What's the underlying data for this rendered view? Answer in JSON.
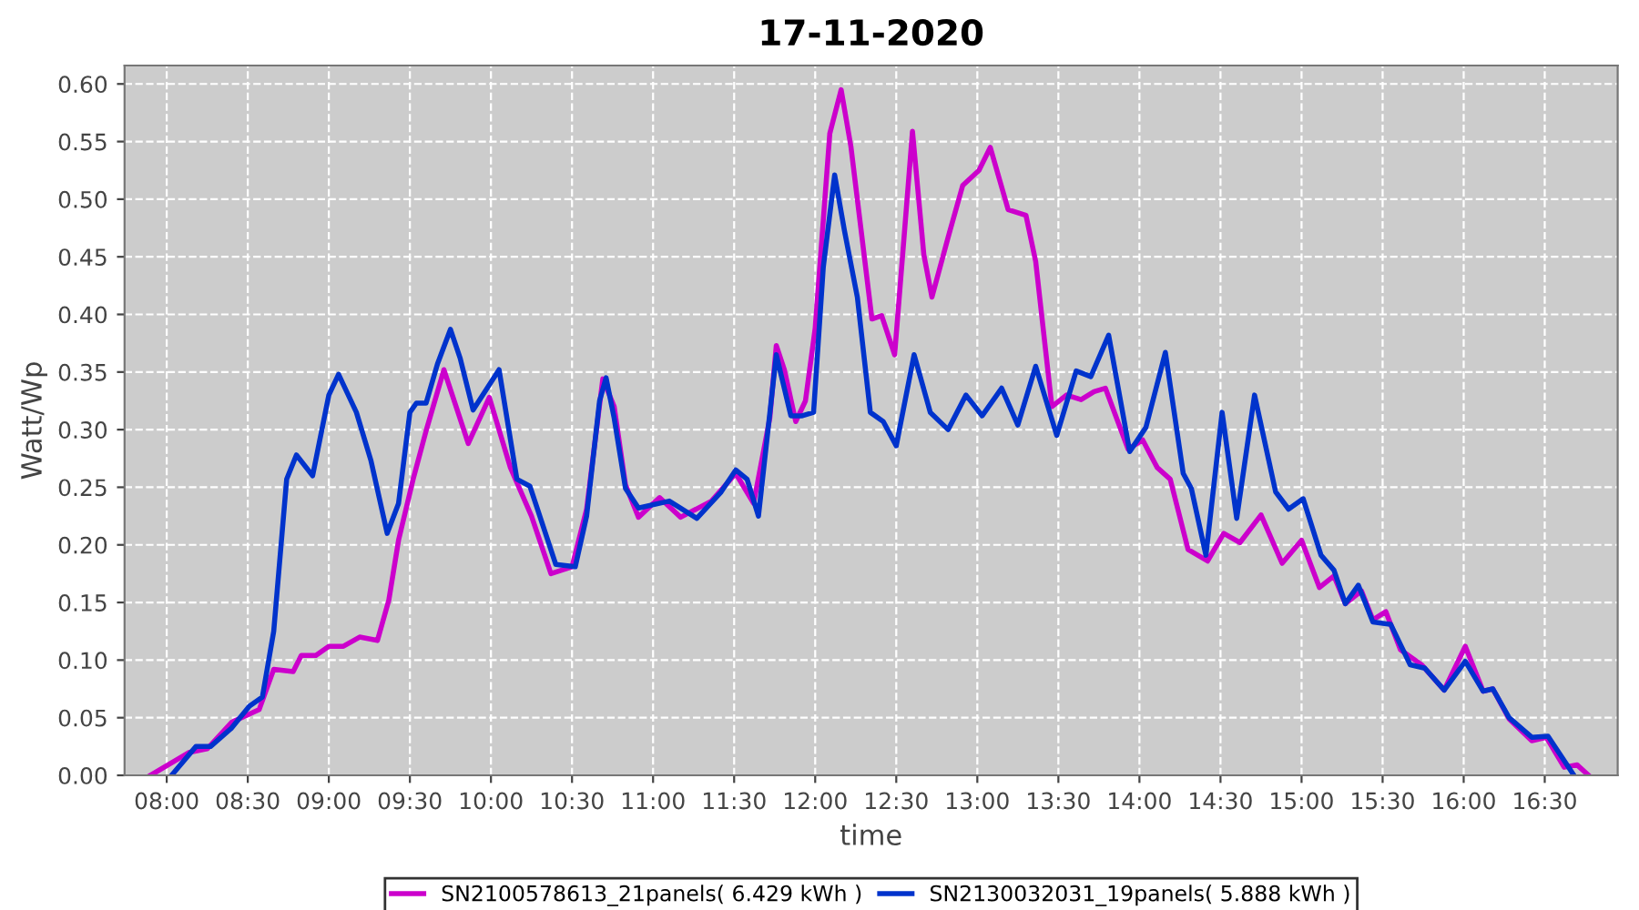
{
  "chart_data": {
    "type": "line",
    "title": "17-11-2020",
    "xlabel": "time",
    "ylabel": "Watt/Wp",
    "series": [
      {
        "name": "SN2100578613_21panels( 6.429 kWh )",
        "color": "#cc00cc",
        "x": [
          7.9,
          8.14,
          8.25,
          8.4,
          8.57,
          8.66,
          8.78,
          8.83,
          8.92,
          9.0,
          9.09,
          9.19,
          9.3,
          9.37,
          9.43,
          9.52,
          9.6,
          9.71,
          9.86,
          9.99,
          10.12,
          10.25,
          10.37,
          10.5,
          10.59,
          10.69,
          10.76,
          10.83,
          10.91,
          11.04,
          11.17,
          11.36,
          11.51,
          11.62,
          11.72,
          11.76,
          11.81,
          11.88,
          11.94,
          12.0,
          12.09,
          12.16,
          12.22,
          12.35,
          12.41,
          12.49,
          12.56,
          12.6,
          12.67,
          12.72,
          12.82,
          12.91,
          13.01,
          13.08,
          13.19,
          13.3,
          13.36,
          13.46,
          13.55,
          13.64,
          13.72,
          13.79,
          13.93,
          14.02,
          14.11,
          14.19,
          14.3,
          14.42,
          14.52,
          14.62,
          14.75,
          14.88,
          15.0,
          15.11,
          15.2,
          15.27,
          15.37,
          15.44,
          15.52,
          15.61,
          15.74,
          15.88,
          16.01,
          16.12,
          16.18,
          16.28,
          16.42,
          16.51,
          16.62,
          16.7,
          16.77
        ],
        "values": [
          0.0,
          0.02,
          0.023,
          0.046,
          0.057,
          0.092,
          0.09,
          0.104,
          0.104,
          0.112,
          0.112,
          0.12,
          0.117,
          0.152,
          0.204,
          0.257,
          0.299,
          0.352,
          0.288,
          0.328,
          0.267,
          0.225,
          0.175,
          0.181,
          0.231,
          0.344,
          0.32,
          0.252,
          0.224,
          0.241,
          0.224,
          0.238,
          0.262,
          0.236,
          0.31,
          0.373,
          0.352,
          0.307,
          0.325,
          0.388,
          0.557,
          0.595,
          0.546,
          0.396,
          0.399,
          0.365,
          0.488,
          0.559,
          0.452,
          0.415,
          0.467,
          0.512,
          0.525,
          0.545,
          0.491,
          0.486,
          0.446,
          0.32,
          0.33,
          0.326,
          0.333,
          0.336,
          0.283,
          0.291,
          0.267,
          0.257,
          0.196,
          0.186,
          0.21,
          0.202,
          0.226,
          0.184,
          0.204,
          0.163,
          0.173,
          0.149,
          0.16,
          0.135,
          0.142,
          0.109,
          0.096,
          0.074,
          0.112,
          0.073,
          0.075,
          0.049,
          0.03,
          0.033,
          0.007,
          0.009,
          0.0
        ]
      },
      {
        "name": "SN2130032031_19panels( 5.888 kWh )",
        "color": "#0033cc",
        "x": [
          8.03,
          8.18,
          8.27,
          8.4,
          8.51,
          8.59,
          8.66,
          8.74,
          8.8,
          8.9,
          9.0,
          9.06,
          9.17,
          9.26,
          9.36,
          9.43,
          9.5,
          9.54,
          9.6,
          9.67,
          9.75,
          9.81,
          9.89,
          10.05,
          10.16,
          10.24,
          10.4,
          10.52,
          10.59,
          10.67,
          10.71,
          10.76,
          10.83,
          10.91,
          11.1,
          11.27,
          11.42,
          11.51,
          11.58,
          11.65,
          11.76,
          11.85,
          11.92,
          11.99,
          12.05,
          12.12,
          12.18,
          12.26,
          12.34,
          12.42,
          12.5,
          12.61,
          12.71,
          12.82,
          12.93,
          13.03,
          13.15,
          13.25,
          13.36,
          13.49,
          13.61,
          13.7,
          13.81,
          13.94,
          14.04,
          14.16,
          14.27,
          14.32,
          14.41,
          14.51,
          14.6,
          14.71,
          14.84,
          14.92,
          15.01,
          15.12,
          15.2,
          15.27,
          15.35,
          15.44,
          15.55,
          15.67,
          15.76,
          15.88,
          16.01,
          16.12,
          16.18,
          16.28,
          16.42,
          16.52,
          16.68
        ],
        "values": [
          0.0,
          0.025,
          0.025,
          0.041,
          0.06,
          0.068,
          0.125,
          0.257,
          0.278,
          0.26,
          0.33,
          0.348,
          0.315,
          0.273,
          0.21,
          0.236,
          0.315,
          0.323,
          0.323,
          0.357,
          0.387,
          0.362,
          0.317,
          0.352,
          0.257,
          0.251,
          0.183,
          0.181,
          0.225,
          0.325,
          0.345,
          0.31,
          0.249,
          0.232,
          0.238,
          0.223,
          0.246,
          0.265,
          0.257,
          0.225,
          0.365,
          0.312,
          0.312,
          0.315,
          0.441,
          0.521,
          0.473,
          0.415,
          0.315,
          0.307,
          0.286,
          0.365,
          0.315,
          0.3,
          0.33,
          0.312,
          0.336,
          0.304,
          0.355,
          0.295,
          0.351,
          0.346,
          0.382,
          0.281,
          0.302,
          0.367,
          0.262,
          0.249,
          0.191,
          0.315,
          0.223,
          0.33,
          0.246,
          0.231,
          0.24,
          0.191,
          0.178,
          0.149,
          0.165,
          0.133,
          0.131,
          0.096,
          0.093,
          0.074,
          0.099,
          0.073,
          0.075,
          0.05,
          0.033,
          0.034,
          0.0
        ]
      }
    ],
    "xlim": [
      7.74,
      16.95
    ],
    "ylim": [
      0,
      0.616
    ],
    "xticks": [
      {
        "value": 8,
        "label": "08:00"
      },
      {
        "value": 8.5,
        "label": "08:30"
      },
      {
        "value": 9,
        "label": "09:00"
      },
      {
        "value": 9.5,
        "label": "09:30"
      },
      {
        "value": 10,
        "label": "10:00"
      },
      {
        "value": 10.5,
        "label": "10:30"
      },
      {
        "value": 11,
        "label": "11:00"
      },
      {
        "value": 11.5,
        "label": "11:30"
      },
      {
        "value": 12,
        "label": "12:00"
      },
      {
        "value": 12.5,
        "label": "12:30"
      },
      {
        "value": 13,
        "label": "13:00"
      },
      {
        "value": 13.5,
        "label": "13:30"
      },
      {
        "value": 14,
        "label": "14:00"
      },
      {
        "value": 14.5,
        "label": "14:30"
      },
      {
        "value": 15,
        "label": "15:00"
      },
      {
        "value": 15.5,
        "label": "15:30"
      },
      {
        "value": 16,
        "label": "16:00"
      },
      {
        "value": 16.5,
        "label": "16:30"
      }
    ],
    "yticks": [
      {
        "value": 0,
        "label": "0.00"
      },
      {
        "value": 0.05,
        "label": "0.05"
      },
      {
        "value": 0.1,
        "label": "0.10"
      },
      {
        "value": 0.15,
        "label": "0.15"
      },
      {
        "value": 0.2,
        "label": "0.20"
      },
      {
        "value": 0.25,
        "label": "0.25"
      },
      {
        "value": 0.3,
        "label": "0.30"
      },
      {
        "value": 0.35,
        "label": "0.35"
      },
      {
        "value": 0.4,
        "label": "0.40"
      },
      {
        "value": 0.45,
        "label": "0.45"
      },
      {
        "value": 0.5,
        "label": "0.50"
      },
      {
        "value": 0.55,
        "label": "0.55"
      },
      {
        "value": 0.6,
        "label": "0.60"
      }
    ],
    "grid": true,
    "legend": "bottom",
    "marker": "none",
    "line_style": "solid"
  }
}
